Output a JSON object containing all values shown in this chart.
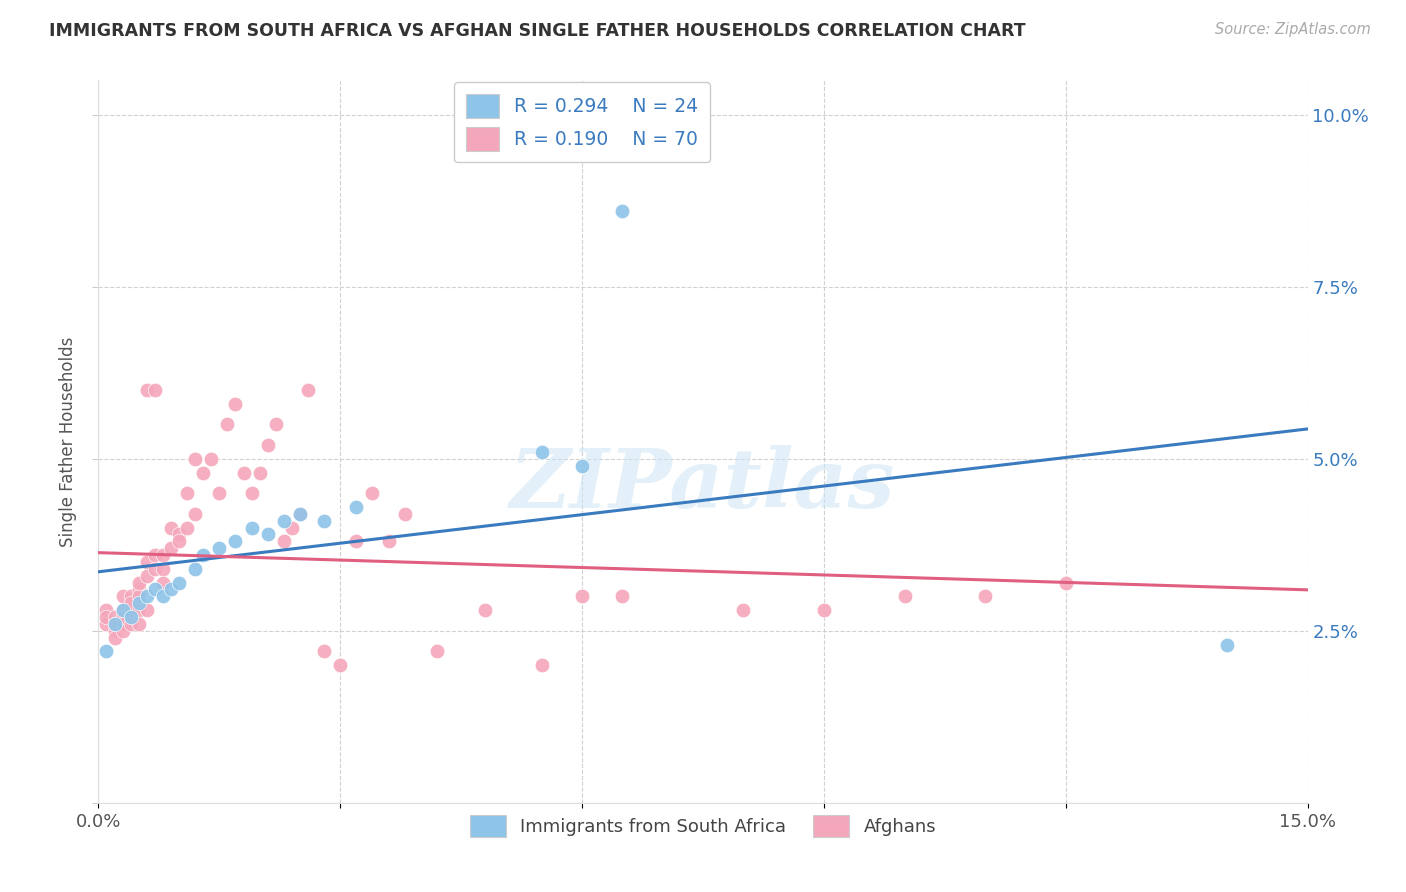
{
  "title": "IMMIGRANTS FROM SOUTH AFRICA VS AFGHAN SINGLE FATHER HOUSEHOLDS CORRELATION CHART",
  "source": "Source: ZipAtlas.com",
  "ylabel": "Single Father Households",
  "xlim": [
    0.0,
    0.15
  ],
  "ylim": [
    0.0,
    0.105
  ],
  "xticks": [
    0.0,
    0.03,
    0.06,
    0.09,
    0.12,
    0.15
  ],
  "xtick_labels": [
    "0.0%",
    "",
    "",
    "",
    "",
    "15.0%"
  ],
  "yticks": [
    0.0,
    0.025,
    0.05,
    0.075,
    0.1
  ],
  "ytick_labels_right": [
    "",
    "2.5%",
    "5.0%",
    "7.5%",
    "10.0%"
  ],
  "blue_color": "#8ec4e8",
  "pink_color": "#f4a7bb",
  "blue_line_color": "#3a7bbf",
  "pink_line_color": "#e05f80",
  "legend_R_blue": "R = 0.294",
  "legend_N_blue": "N = 24",
  "legend_R_pink": "R = 0.190",
  "legend_N_pink": "N = 70",
  "legend_label_blue": "Immigrants from South Africa",
  "legend_label_pink": "Afghans",
  "watermark": "ZIPatlas",
  "blue_x": [
    0.001,
    0.002,
    0.003,
    0.004,
    0.005,
    0.006,
    0.007,
    0.008,
    0.009,
    0.01,
    0.012,
    0.013,
    0.015,
    0.017,
    0.019,
    0.021,
    0.023,
    0.025,
    0.028,
    0.032,
    0.055,
    0.06,
    0.065,
    0.14
  ],
  "blue_y": [
    0.022,
    0.026,
    0.028,
    0.027,
    0.029,
    0.03,
    0.031,
    0.03,
    0.031,
    0.032,
    0.034,
    0.036,
    0.037,
    0.038,
    0.04,
    0.039,
    0.041,
    0.042,
    0.041,
    0.043,
    0.051,
    0.049,
    0.086,
    0.023
  ],
  "pink_x": [
    0.001,
    0.001,
    0.001,
    0.002,
    0.002,
    0.002,
    0.002,
    0.003,
    0.003,
    0.003,
    0.003,
    0.003,
    0.004,
    0.004,
    0.004,
    0.004,
    0.004,
    0.005,
    0.005,
    0.005,
    0.005,
    0.005,
    0.006,
    0.006,
    0.006,
    0.006,
    0.007,
    0.007,
    0.007,
    0.008,
    0.008,
    0.008,
    0.009,
    0.009,
    0.01,
    0.01,
    0.011,
    0.011,
    0.012,
    0.012,
    0.013,
    0.014,
    0.015,
    0.016,
    0.017,
    0.018,
    0.019,
    0.02,
    0.021,
    0.022,
    0.023,
    0.024,
    0.025,
    0.026,
    0.028,
    0.03,
    0.032,
    0.034,
    0.036,
    0.038,
    0.042,
    0.048,
    0.055,
    0.06,
    0.065,
    0.08,
    0.09,
    0.1,
    0.11,
    0.12
  ],
  "pink_y": [
    0.026,
    0.028,
    0.027,
    0.025,
    0.027,
    0.026,
    0.024,
    0.028,
    0.027,
    0.026,
    0.025,
    0.03,
    0.027,
    0.028,
    0.03,
    0.026,
    0.029,
    0.031,
    0.03,
    0.028,
    0.032,
    0.026,
    0.033,
    0.035,
    0.028,
    0.06,
    0.036,
    0.034,
    0.06,
    0.036,
    0.034,
    0.032,
    0.037,
    0.04,
    0.039,
    0.038,
    0.045,
    0.04,
    0.05,
    0.042,
    0.048,
    0.05,
    0.045,
    0.055,
    0.058,
    0.048,
    0.045,
    0.048,
    0.052,
    0.055,
    0.038,
    0.04,
    0.042,
    0.06,
    0.022,
    0.02,
    0.038,
    0.045,
    0.038,
    0.042,
    0.022,
    0.028,
    0.02,
    0.03,
    0.03,
    0.028,
    0.028,
    0.03,
    0.03,
    0.032
  ]
}
